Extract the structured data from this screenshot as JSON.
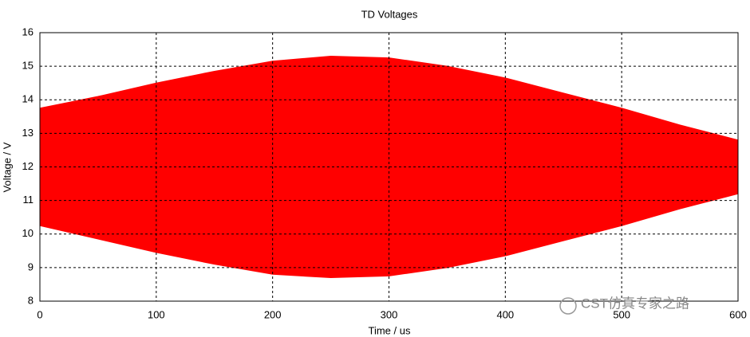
{
  "chart_data": {
    "type": "band",
    "title": "TD Voltages",
    "xlabel": "Time / us",
    "ylabel": "Voltage / V",
    "x": [
      0,
      50,
      100,
      150,
      200,
      250,
      300,
      350,
      400,
      450,
      500,
      550,
      600
    ],
    "series": [
      {
        "color": "#ff0000",
        "values": [
          13.75,
          14.1,
          14.5,
          14.85,
          15.15,
          15.3,
          15.25,
          15.0,
          14.65,
          14.2,
          13.75,
          13.25,
          12.8
        ]
      },
      {
        "color": "#ff0000",
        "values": [
          10.25,
          9.85,
          9.45,
          9.1,
          8.8,
          8.7,
          8.75,
          9.0,
          9.35,
          9.8,
          10.25,
          10.75,
          11.2
        ]
      }
    ],
    "xlim": [
      0,
      600
    ],
    "xticks": [
      0,
      100,
      200,
      300,
      400,
      500,
      600
    ],
    "ylim": [
      8,
      16
    ],
    "yticks": [
      8,
      9,
      10,
      11,
      12,
      13,
      14,
      15,
      16
    ],
    "grid": true,
    "watermark": "CST仿真专家之路"
  }
}
